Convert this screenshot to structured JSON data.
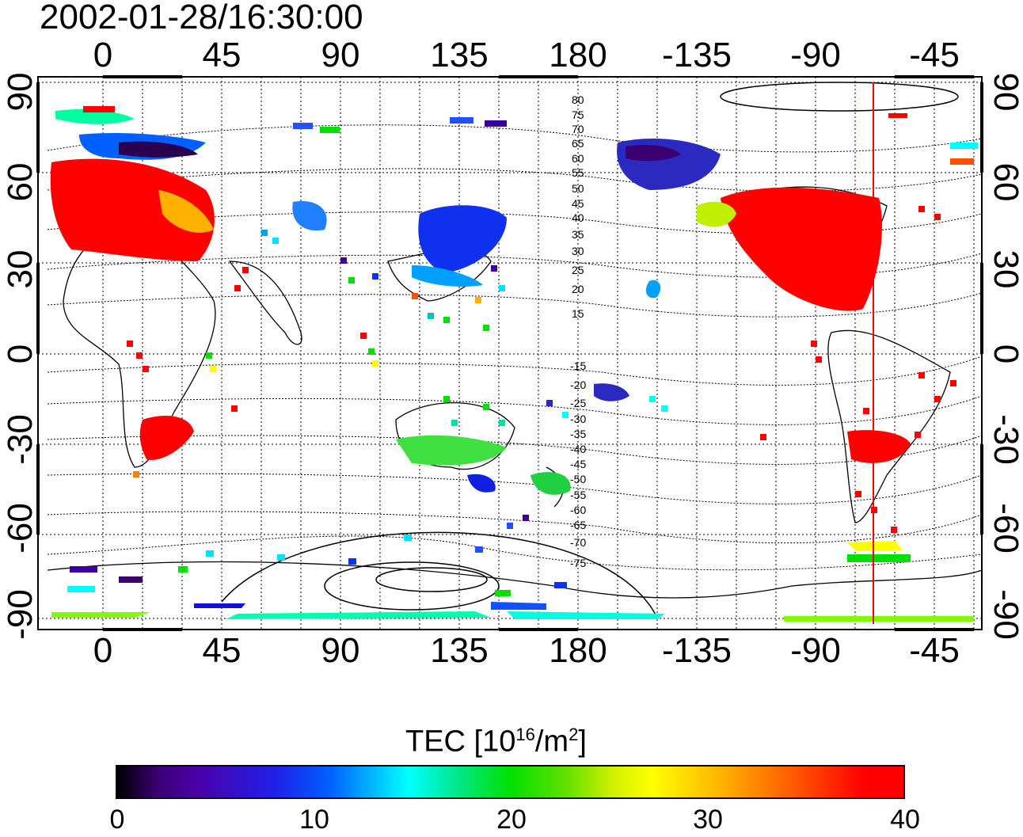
{
  "title": "2002-01-28/16:30:00",
  "top_axis_labels": [
    "0",
    "45",
    "90",
    "135",
    "180",
    "-135",
    "-90",
    "-45"
  ],
  "bottom_axis_labels": [
    "0",
    "45",
    "90",
    "135",
    "180",
    "-135",
    "-90",
    "-45"
  ],
  "left_axis_labels": [
    "90",
    "60",
    "30",
    "0",
    "-30",
    "-60",
    "-90"
  ],
  "right_axis_labels": [
    "90",
    "60",
    "30",
    "0",
    "-30",
    "-60",
    "-90"
  ],
  "contour_labels_north": [
    "80",
    "75",
    "70",
    "65",
    "60",
    "55",
    "50",
    "45",
    "40",
    "35",
    "30",
    "25",
    "20",
    "15"
  ],
  "contour_labels_south": [
    "-15",
    "-20",
    "-25",
    "-30",
    "-35",
    "-40",
    "-45",
    "-50",
    "-55",
    "-60",
    "-65",
    "-70",
    "-75"
  ],
  "colorbar": {
    "title_main": "TEC  [10",
    "title_exp1": "16",
    "title_mid": "/m",
    "title_exp2": "2",
    "title_end": "]",
    "tick_labels": [
      "0",
      "10",
      "20",
      "30",
      "40"
    ],
    "range": [
      0,
      40
    ]
  },
  "marker_line": {
    "longitude": -68,
    "color": "#ff0000"
  },
  "colors": {
    "low": "#000000",
    "mid": "#00e000",
    "high": "#ff0000"
  }
}
